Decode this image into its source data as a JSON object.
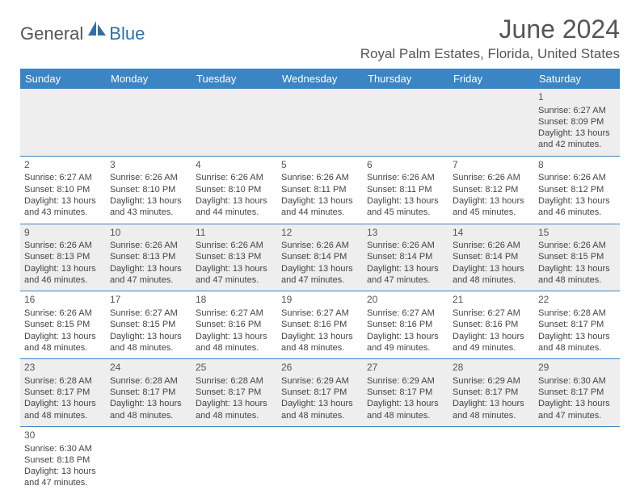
{
  "brand": {
    "part1": "General",
    "part2": "Blue"
  },
  "title": "June 2024",
  "location": "Royal Palm Estates, Florida, United States",
  "colors": {
    "header_bar": "#3b85c4",
    "brand_blue": "#2f6fa8",
    "text_gray": "#555555",
    "row_alt": "#eeeeee",
    "border": "#3b85c4"
  },
  "day_headers": [
    "Sunday",
    "Monday",
    "Tuesday",
    "Wednesday",
    "Thursday",
    "Friday",
    "Saturday"
  ],
  "days": {
    "1": {
      "sunrise": "6:27 AM",
      "sunset": "8:09 PM",
      "dl_h": "13",
      "dl_m": "42"
    },
    "2": {
      "sunrise": "6:27 AM",
      "sunset": "8:10 PM",
      "dl_h": "13",
      "dl_m": "43"
    },
    "3": {
      "sunrise": "6:26 AM",
      "sunset": "8:10 PM",
      "dl_h": "13",
      "dl_m": "43"
    },
    "4": {
      "sunrise": "6:26 AM",
      "sunset": "8:10 PM",
      "dl_h": "13",
      "dl_m": "44"
    },
    "5": {
      "sunrise": "6:26 AM",
      "sunset": "8:11 PM",
      "dl_h": "13",
      "dl_m": "44"
    },
    "6": {
      "sunrise": "6:26 AM",
      "sunset": "8:11 PM",
      "dl_h": "13",
      "dl_m": "45"
    },
    "7": {
      "sunrise": "6:26 AM",
      "sunset": "8:12 PM",
      "dl_h": "13",
      "dl_m": "45"
    },
    "8": {
      "sunrise": "6:26 AM",
      "sunset": "8:12 PM",
      "dl_h": "13",
      "dl_m": "46"
    },
    "9": {
      "sunrise": "6:26 AM",
      "sunset": "8:13 PM",
      "dl_h": "13",
      "dl_m": "46"
    },
    "10": {
      "sunrise": "6:26 AM",
      "sunset": "8:13 PM",
      "dl_h": "13",
      "dl_m": "47"
    },
    "11": {
      "sunrise": "6:26 AM",
      "sunset": "8:13 PM",
      "dl_h": "13",
      "dl_m": "47"
    },
    "12": {
      "sunrise": "6:26 AM",
      "sunset": "8:14 PM",
      "dl_h": "13",
      "dl_m": "47"
    },
    "13": {
      "sunrise": "6:26 AM",
      "sunset": "8:14 PM",
      "dl_h": "13",
      "dl_m": "47"
    },
    "14": {
      "sunrise": "6:26 AM",
      "sunset": "8:14 PM",
      "dl_h": "13",
      "dl_m": "48"
    },
    "15": {
      "sunrise": "6:26 AM",
      "sunset": "8:15 PM",
      "dl_h": "13",
      "dl_m": "48"
    },
    "16": {
      "sunrise": "6:26 AM",
      "sunset": "8:15 PM",
      "dl_h": "13",
      "dl_m": "48"
    },
    "17": {
      "sunrise": "6:27 AM",
      "sunset": "8:15 PM",
      "dl_h": "13",
      "dl_m": "48"
    },
    "18": {
      "sunrise": "6:27 AM",
      "sunset": "8:16 PM",
      "dl_h": "13",
      "dl_m": "48"
    },
    "19": {
      "sunrise": "6:27 AM",
      "sunset": "8:16 PM",
      "dl_h": "13",
      "dl_m": "48"
    },
    "20": {
      "sunrise": "6:27 AM",
      "sunset": "8:16 PM",
      "dl_h": "13",
      "dl_m": "49"
    },
    "21": {
      "sunrise": "6:27 AM",
      "sunset": "8:16 PM",
      "dl_h": "13",
      "dl_m": "49"
    },
    "22": {
      "sunrise": "6:28 AM",
      "sunset": "8:17 PM",
      "dl_h": "13",
      "dl_m": "48"
    },
    "23": {
      "sunrise": "6:28 AM",
      "sunset": "8:17 PM",
      "dl_h": "13",
      "dl_m": "48"
    },
    "24": {
      "sunrise": "6:28 AM",
      "sunset": "8:17 PM",
      "dl_h": "13",
      "dl_m": "48"
    },
    "25": {
      "sunrise": "6:28 AM",
      "sunset": "8:17 PM",
      "dl_h": "13",
      "dl_m": "48"
    },
    "26": {
      "sunrise": "6:29 AM",
      "sunset": "8:17 PM",
      "dl_h": "13",
      "dl_m": "48"
    },
    "27": {
      "sunrise": "6:29 AM",
      "sunset": "8:17 PM",
      "dl_h": "13",
      "dl_m": "48"
    },
    "28": {
      "sunrise": "6:29 AM",
      "sunset": "8:17 PM",
      "dl_h": "13",
      "dl_m": "48"
    },
    "29": {
      "sunrise": "6:30 AM",
      "sunset": "8:17 PM",
      "dl_h": "13",
      "dl_m": "47"
    },
    "30": {
      "sunrise": "6:30 AM",
      "sunset": "8:18 PM",
      "dl_h": "13",
      "dl_m": "47"
    }
  },
  "labels": {
    "sunrise_prefix": "Sunrise: ",
    "sunset_prefix": "Sunset: ",
    "daylight_prefix": "Daylight: ",
    "hours_word": " hours",
    "and_word": "and ",
    "minutes_word": " minutes."
  },
  "layout": {
    "weeks": [
      [
        null,
        null,
        null,
        null,
        null,
        null,
        "1"
      ],
      [
        "2",
        "3",
        "4",
        "5",
        "6",
        "7",
        "8"
      ],
      [
        "9",
        "10",
        "11",
        "12",
        "13",
        "14",
        "15"
      ],
      [
        "16",
        "17",
        "18",
        "19",
        "20",
        "21",
        "22"
      ],
      [
        "23",
        "24",
        "25",
        "26",
        "27",
        "28",
        "29"
      ],
      [
        "30",
        null,
        null,
        null,
        null,
        null,
        null
      ]
    ]
  }
}
